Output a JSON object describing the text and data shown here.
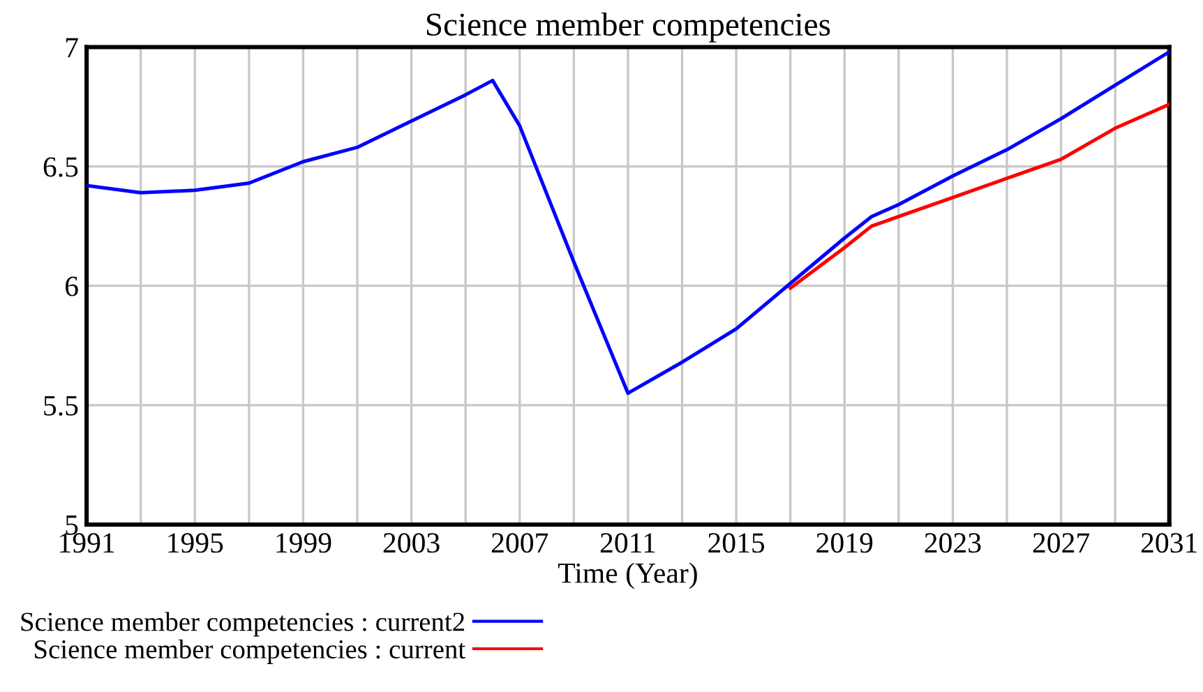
{
  "chart_data": {
    "type": "line",
    "title": "Science member competencies",
    "xlabel": "Time (Year)",
    "xlim": [
      1991,
      2031
    ],
    "ylim": [
      5,
      7
    ],
    "xticks": [
      1991,
      {
        "value": 1993,
        "label": null
      },
      1995,
      {
        "value": 1997,
        "label": null
      },
      1999,
      {
        "value": 2001,
        "label": null
      },
      2003,
      {
        "value": 2005,
        "label": null
      },
      2007,
      {
        "value": 2009,
        "label": null
      },
      2011,
      {
        "value": 2013,
        "label": null
      },
      2015,
      {
        "value": 2017,
        "label": null
      },
      2019,
      {
        "value": 2021,
        "label": null
      },
      2023,
      {
        "value": 2025,
        "label": null
      },
      2027,
      {
        "value": 2029,
        "label": null
      },
      2031
    ],
    "yticks": [
      5,
      5.5,
      6,
      6.5,
      7
    ],
    "grid": true,
    "legend": "bottom",
    "line_style": "solid",
    "series": [
      {
        "name": "Science member competencies : current2",
        "color": "#0000ff",
        "x": [
          1991,
          1993,
          1995,
          1997,
          1999,
          2001,
          2003,
          2005,
          2006,
          2007,
          2009,
          2011,
          2013,
          2015,
          2017,
          2019,
          2020,
          2021,
          2023,
          2025,
          2027,
          2029,
          2031
        ],
        "values": [
          6.42,
          6.39,
          6.4,
          6.43,
          6.52,
          6.58,
          6.69,
          6.8,
          6.86,
          6.67,
          6.1,
          5.55,
          5.68,
          5.82,
          6.01,
          6.2,
          6.29,
          6.34,
          6.46,
          6.57,
          6.7,
          6.84,
          6.98
        ]
      },
      {
        "name": "Science member competencies : current",
        "color": "#ff0000",
        "x": [
          2017,
          2019,
          2020,
          2021,
          2023,
          2025,
          2027,
          2029,
          2031
        ],
        "values": [
          5.99,
          6.16,
          6.25,
          6.29,
          6.37,
          6.45,
          6.53,
          6.66,
          6.76
        ]
      }
    ]
  }
}
